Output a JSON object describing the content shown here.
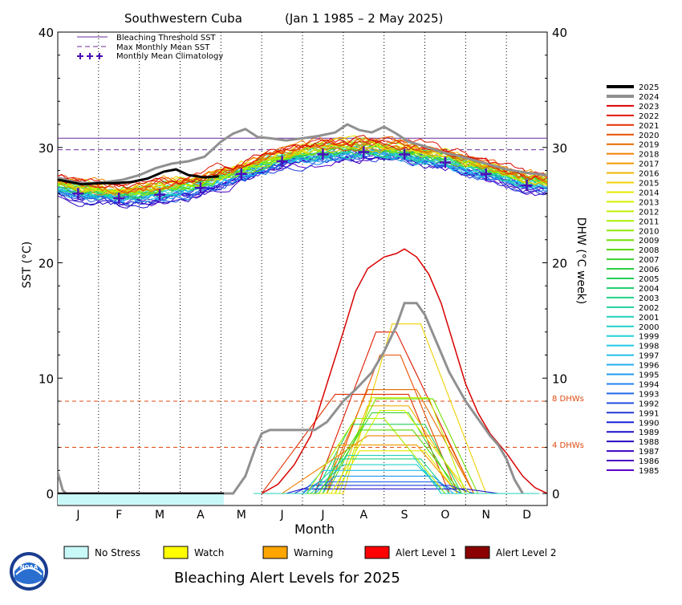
{
  "title": {
    "region": "Southwestern Cuba",
    "period": "(Jan 1 1985 – 2 May 2025)"
  },
  "footer": {
    "title": "Bleaching Alert Levels for 2025"
  },
  "logo": {
    "text": "NOAA"
  },
  "chart_data": {
    "type": "line",
    "xlabel": "Month",
    "ylabel_left": "SST (°C)",
    "ylabel_right": "DHW (°C week)",
    "ylim": [
      0,
      40
    ],
    "yticks": [
      0,
      10,
      20,
      30,
      40
    ],
    "months": [
      "J",
      "F",
      "M",
      "A",
      "M",
      "J",
      "J",
      "A",
      "S",
      "O",
      "N",
      "D"
    ],
    "grid": "dotted vertical lines at month boundaries",
    "reference_lines": {
      "bleaching_threshold_sst": 30.8,
      "max_monthly_mean_sst": 29.8,
      "dhw_8_label": "8 DHWs",
      "dhw_4_label": "4 DHWs",
      "dhw_8": 8,
      "dhw_4": 4
    },
    "legend_top": [
      {
        "label": "Bleaching Threshold SST",
        "style": "solid",
        "color": "#6a2c9a"
      },
      {
        "label": "Max Monthly Mean SST",
        "style": "dashed",
        "color": "#6a2c9a"
      },
      {
        "label": "Monthly Mean Climatology",
        "style": "plus",
        "color": "#4b0fb8"
      }
    ],
    "monthly_mean_climatology": [
      {
        "month": 0.5,
        "value": 26.0
      },
      {
        "month": 1.5,
        "value": 25.6
      },
      {
        "month": 2.5,
        "value": 25.9
      },
      {
        "month": 3.5,
        "value": 26.5
      },
      {
        "month": 4.5,
        "value": 27.7
      },
      {
        "month": 5.5,
        "value": 28.8
      },
      {
        "month": 6.5,
        "value": 29.4
      },
      {
        "month": 7.5,
        "value": 29.6
      },
      {
        "month": 8.5,
        "value": 29.4
      },
      {
        "month": 9.5,
        "value": 28.7
      },
      {
        "month": 10.5,
        "value": 27.7
      },
      {
        "month": 11.5,
        "value": 26.7
      }
    ],
    "series_2025_sst": [
      [
        0,
        27.2
      ],
      [
        0.3,
        27.0
      ],
      [
        0.6,
        26.8
      ],
      [
        1.0,
        26.9
      ],
      [
        1.4,
        26.9
      ],
      [
        1.8,
        27.0
      ],
      [
        2.2,
        27.3
      ],
      [
        2.6,
        27.9
      ],
      [
        2.9,
        28.1
      ],
      [
        3.2,
        27.6
      ],
      [
        3.6,
        27.4
      ],
      [
        3.95,
        27.5
      ]
    ],
    "series_2024_sst": [
      [
        0,
        27.4
      ],
      [
        0.4,
        27.0
      ],
      [
        0.8,
        26.9
      ],
      [
        1.2,
        27.0
      ],
      [
        1.6,
        27.2
      ],
      [
        2.0,
        27.6
      ],
      [
        2.4,
        28.2
      ],
      [
        2.8,
        28.6
      ],
      [
        3.2,
        28.8
      ],
      [
        3.6,
        29.2
      ],
      [
        4.0,
        30.5
      ],
      [
        4.3,
        31.2
      ],
      [
        4.6,
        31.6
      ],
      [
        4.9,
        30.9
      ],
      [
        5.2,
        30.8
      ],
      [
        5.6,
        30.6
      ],
      [
        6.0,
        30.8
      ],
      [
        6.4,
        31.0
      ],
      [
        6.8,
        31.3
      ],
      [
        7.1,
        32.0
      ],
      [
        7.4,
        31.5
      ],
      [
        7.7,
        31.3
      ],
      [
        8.0,
        31.8
      ],
      [
        8.3,
        31.2
      ],
      [
        8.6,
        30.5
      ],
      [
        9.0,
        30.1
      ],
      [
        9.4,
        29.6
      ],
      [
        9.8,
        29.3
      ],
      [
        10.2,
        28.9
      ],
      [
        10.6,
        28.5
      ],
      [
        11.0,
        28.1
      ],
      [
        11.5,
        27.8
      ],
      [
        12.0,
        27.6
      ]
    ],
    "series_2024_dhw": [
      [
        0,
        1.8
      ],
      [
        0.12,
        0.3
      ],
      [
        0.2,
        0
      ],
      [
        4.3,
        0
      ],
      [
        4.6,
        1.5
      ],
      [
        4.85,
        4.0
      ],
      [
        5.0,
        5.2
      ],
      [
        5.2,
        5.5
      ],
      [
        6.0,
        5.5
      ],
      [
        6.3,
        5.5
      ],
      [
        6.6,
        6.2
      ],
      [
        7.0,
        8.0
      ],
      [
        7.3,
        9.0
      ],
      [
        7.7,
        10.5
      ],
      [
        8.0,
        12.3
      ],
      [
        8.3,
        14.5
      ],
      [
        8.5,
        16.5
      ],
      [
        8.8,
        16.5
      ],
      [
        9.0,
        15.5
      ],
      [
        9.3,
        13.0
      ],
      [
        9.6,
        10.5
      ],
      [
        10.0,
        8.0
      ],
      [
        10.3,
        6.5
      ],
      [
        10.6,
        5.0
      ],
      [
        10.8,
        4.2
      ],
      [
        11.0,
        3.0
      ],
      [
        11.2,
        1.2
      ],
      [
        11.4,
        0
      ]
    ],
    "series_2023_dhw": [
      [
        5.0,
        0
      ],
      [
        5.4,
        0.8
      ],
      [
        5.8,
        2.5
      ],
      [
        6.2,
        5.0
      ],
      [
        6.6,
        9.5
      ],
      [
        7.0,
        14.0
      ],
      [
        7.3,
        17.5
      ],
      [
        7.6,
        19.5
      ],
      [
        8.0,
        20.5
      ],
      [
        8.3,
        20.8
      ],
      [
        8.5,
        21.2
      ],
      [
        8.8,
        20.5
      ],
      [
        9.1,
        19.0
      ],
      [
        9.4,
        16.5
      ],
      [
        9.7,
        13.0
      ],
      [
        10.0,
        9.5
      ],
      [
        10.3,
        7.0
      ],
      [
        10.6,
        5.2
      ],
      [
        11.0,
        3.5
      ],
      [
        11.4,
        1.5
      ],
      [
        11.7,
        0.5
      ],
      [
        12.0,
        0
      ]
    ],
    "legend_years": [
      "2025",
      "2024",
      "2023",
      "2022",
      "2021",
      "2020",
      "2019",
      "2018",
      "2017",
      "2016",
      "2015",
      "2014",
      "2013",
      "2012",
      "2011",
      "2010",
      "2009",
      "2008",
      "2007",
      "2006",
      "2005",
      "2004",
      "2003",
      "2002",
      "2001",
      "2000",
      "1999",
      "1998",
      "1997",
      "1996",
      "1995",
      "1994",
      "1993",
      "1992",
      "1991",
      "1990",
      "1989",
      "1988",
      "1987",
      "1986",
      "1985"
    ],
    "legend_year_colors": [
      "#000000",
      "#909090",
      "#d80000",
      "#e01800",
      "#e03000",
      "#e85000",
      "#e86a00",
      "#f08000",
      "#f09a00",
      "#f0b400",
      "#f0d000",
      "#e8e800",
      "#d8f000",
      "#c0f000",
      "#a8f000",
      "#90e800",
      "#70e000",
      "#50d800",
      "#38d030",
      "#28d040",
      "#20d058",
      "#20d070",
      "#20d088",
      "#20d0a0",
      "#20d0b8",
      "#20d0c8",
      "#20d0d8",
      "#20c8e0",
      "#20c0e8",
      "#20b0f0",
      "#2098f0",
      "#2080f0",
      "#2068e8",
      "#2050e0",
      "#2038d8",
      "#1a20d0",
      "#1c10c8",
      "#2a08c0",
      "#3a00c0",
      "#4800c0",
      "#5a00c8"
    ],
    "alert_bar_2025": [
      {
        "level": "No Stress",
        "from_month": 0,
        "to_month": 4.07
      }
    ],
    "alert_levels": [
      {
        "label": "No Stress",
        "color": "#c8f8f8"
      },
      {
        "label": "Watch",
        "color": "#ffff00"
      },
      {
        "label": "Warning",
        "color": "#ffa500"
      },
      {
        "label": "Alert Level 1",
        "color": "#ff0000"
      },
      {
        "label": "Alert Level 2",
        "color": "#8b0000"
      }
    ]
  }
}
